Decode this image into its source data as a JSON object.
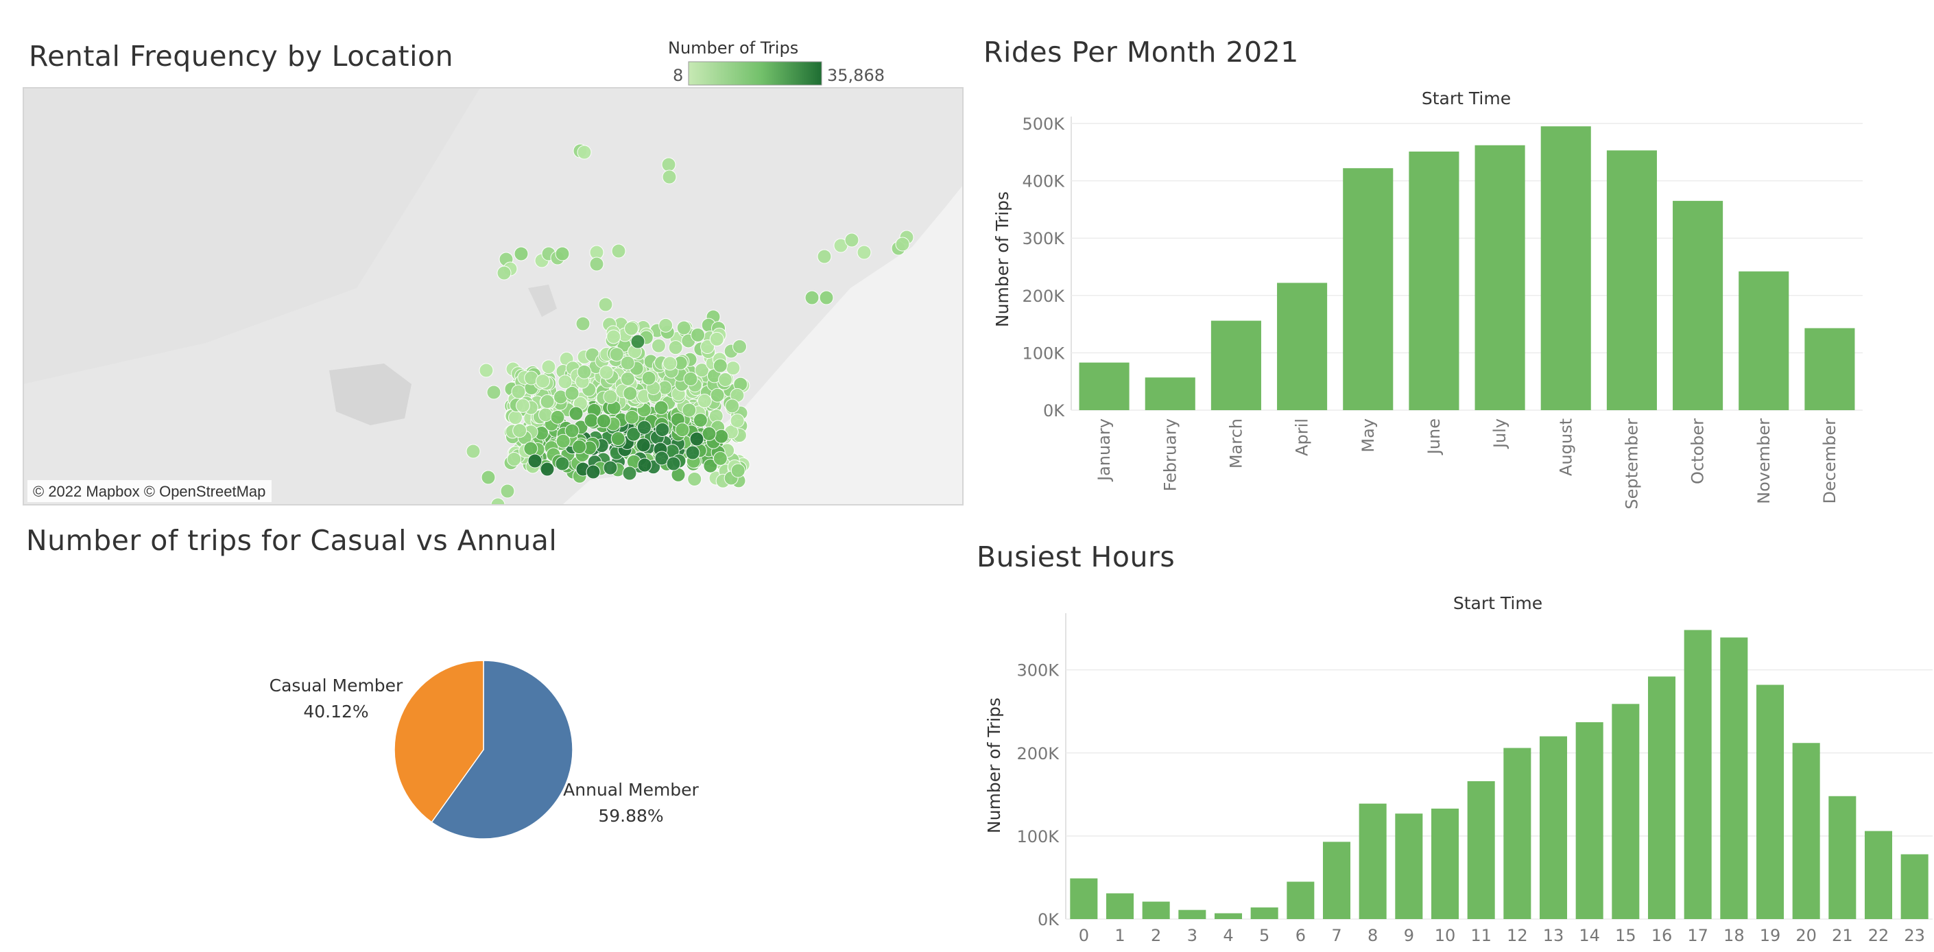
{
  "titles": {
    "map": "Rental Frequency by Location",
    "pie": "Number of trips for Casual vs Annual",
    "monthly": "Rides Per Month 2021",
    "hourly": "Busiest Hours"
  },
  "colors": {
    "bar": "#70b961",
    "pie_casual": "#f28e2b",
    "pie_annual": "#4e79a7",
    "map_bg": "#e8e8e8",
    "gradient_light": "#c7e9b4",
    "gradient_dark": "#2a7a3a"
  },
  "map": {
    "legend_title": "Number of Trips",
    "legend_min": "8",
    "legend_max": "35,868",
    "attribution": "© 2022 Mapbox © OpenStreetMap"
  },
  "chart_data": [
    {
      "id": "monthly",
      "type": "bar",
      "title": "Rides Per Month 2021",
      "xlabel": "Start Time",
      "ylabel": "Number of Trips",
      "categories": [
        "January",
        "February",
        "March",
        "April",
        "May",
        "June",
        "July",
        "August",
        "September",
        "October",
        "November",
        "December"
      ],
      "values": [
        83000,
        57000,
        156000,
        222000,
        422000,
        451000,
        462000,
        495000,
        453000,
        365000,
        242000,
        143000
      ],
      "ylim": [
        0,
        500000
      ],
      "yticks": [
        0,
        100000,
        200000,
        300000,
        400000,
        500000
      ],
      "ytick_labels": [
        "0K",
        "100K",
        "200K",
        "300K",
        "400K",
        "500K"
      ],
      "grid": true
    },
    {
      "id": "hourly",
      "type": "bar",
      "title": "Busiest Hours",
      "xlabel": "Start Time",
      "ylabel": "Number of Trips",
      "categories": [
        "0",
        "1",
        "2",
        "3",
        "4",
        "5",
        "6",
        "7",
        "8",
        "9",
        "10",
        "11",
        "12",
        "13",
        "14",
        "15",
        "16",
        "17",
        "18",
        "19",
        "20",
        "21",
        "22",
        "23"
      ],
      "values": [
        49000,
        31000,
        21000,
        11000,
        7000,
        14000,
        45000,
        93000,
        139000,
        127000,
        133000,
        166000,
        206000,
        220000,
        237000,
        259000,
        292000,
        348000,
        339000,
        282000,
        212000,
        148000,
        106000,
        78000
      ],
      "ylim": [
        0,
        360000
      ],
      "yticks": [
        0,
        100000,
        200000,
        300000
      ],
      "ytick_labels": [
        "0K",
        "100K",
        "200K",
        "300K"
      ],
      "grid": true
    },
    {
      "id": "pie",
      "type": "pie",
      "title": "Number of trips for Casual vs Annual",
      "slices": [
        {
          "name": "Casual Member",
          "value": 40.12,
          "label": "40.12%"
        },
        {
          "name": "Annual Member",
          "value": 59.88,
          "label": "59.88%"
        }
      ]
    }
  ]
}
